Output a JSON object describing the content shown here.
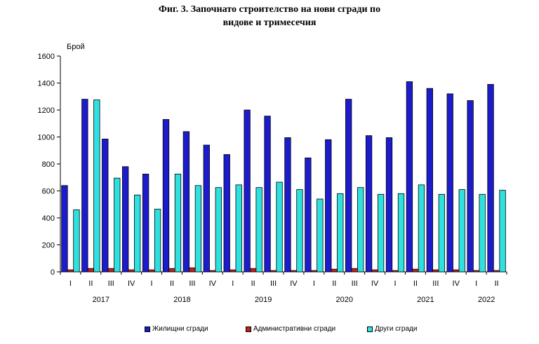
{
  "chart_data": {
    "type": "bar",
    "title_line1": "Фиг. 3. Започнато строителство на нови сгради по",
    "title_line2": "видове и тримесечия",
    "ylabel": "Брой",
    "ylim": [
      0,
      1600
    ],
    "yticks": [
      0,
      200,
      400,
      600,
      800,
      1000,
      1200,
      1400,
      1600
    ],
    "grid": false,
    "legend_position": "bottom",
    "categories": [
      "I",
      "II",
      "III",
      "IV",
      "I",
      "II",
      "III",
      "IV",
      "I",
      "II",
      "III",
      "IV",
      "I",
      "II",
      "III",
      "IV",
      "I",
      "II",
      "III",
      "IV",
      "I",
      "II"
    ],
    "years": [
      {
        "label": "2017",
        "start": 0,
        "end": 3
      },
      {
        "label": "2018",
        "start": 4,
        "end": 7
      },
      {
        "label": "2019",
        "start": 8,
        "end": 11
      },
      {
        "label": "2020",
        "start": 12,
        "end": 15
      },
      {
        "label": "2021",
        "start": 16,
        "end": 19
      },
      {
        "label": "2022",
        "start": 20,
        "end": 21
      }
    ],
    "series": [
      {
        "name": "Жилищни сгради",
        "color": "#1c1ccc",
        "values": [
          640,
          1280,
          985,
          780,
          725,
          1130,
          1040,
          940,
          870,
          1200,
          1155,
          995,
          845,
          980,
          1280,
          1010,
          995,
          1410,
          1360,
          1320,
          1270,
          1390
        ]
      },
      {
        "name": "Административни сгради",
        "color": "#c0201f",
        "values": [
          15,
          25,
          25,
          15,
          15,
          25,
          30,
          10,
          15,
          25,
          10,
          10,
          10,
          20,
          25,
          15,
          10,
          20,
          15,
          15,
          10,
          10
        ]
      },
      {
        "name": "Други сгради",
        "color": "#2ee0e0",
        "values": [
          460,
          1275,
          695,
          570,
          465,
          725,
          640,
          625,
          645,
          625,
          665,
          610,
          540,
          580,
          625,
          575,
          580,
          645,
          575,
          610,
          575,
          605
        ]
      }
    ]
  }
}
